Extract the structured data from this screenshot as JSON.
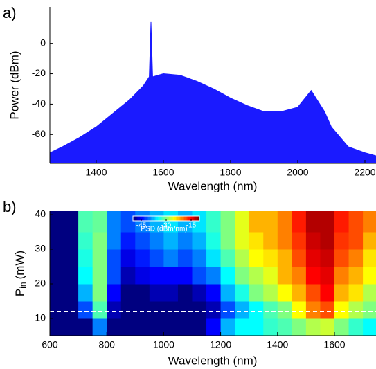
{
  "chart_data": [
    {
      "type": "area",
      "panel_label": "a)",
      "xlabel": "Wavelength (nm)",
      "ylabel": "Power (dBm)",
      "color": "#1a1aff",
      "x": [
        1262,
        1300,
        1350,
        1400,
        1450,
        1500,
        1540,
        1558,
        1563,
        1568,
        1600,
        1650,
        1700,
        1750,
        1800,
        1850,
        1900,
        1950,
        2000,
        2040,
        2080,
        2100,
        2150,
        2200,
        2233
      ],
      "values": [
        -72,
        -68,
        -62,
        -55,
        -46,
        -37,
        -28,
        -22,
        14,
        -22,
        -20,
        -21,
        -25,
        -30,
        -36,
        -41,
        -45,
        -45,
        -42,
        -31,
        -45,
        -55,
        -68,
        -72,
        -74
      ],
      "xlim": [
        1262,
        2233
      ],
      "ylim": [
        -79,
        24
      ],
      "xticks": [
        1400,
        1600,
        1800,
        2000,
        2200
      ],
      "yticks": [
        0,
        -20,
        -40,
        -60
      ]
    },
    {
      "type": "heatmap",
      "panel_label": "b)",
      "xlabel": "Wavelength (nm)",
      "ylabel_main": "P",
      "ylabel_sub": "in",
      "ylabel_unit": "(mW)",
      "xbins": [
        600,
        650,
        700,
        750,
        800,
        850,
        900,
        950,
        1000,
        1050,
        1100,
        1150,
        1200,
        1250,
        1300,
        1350,
        1400,
        1450,
        1500,
        1550,
        1600,
        1650,
        1700,
        1750
      ],
      "ybins": [
        5,
        10,
        15,
        20,
        25,
        30,
        35,
        41
      ],
      "z": [
        [
          -50,
          -50,
          -50,
          -40,
          -50,
          -50,
          -50,
          -50,
          -50,
          -50,
          -50,
          -45,
          -38,
          -35,
          -35,
          -33,
          -32,
          -30,
          -28,
          -27,
          -30,
          -33,
          -35
        ],
        [
          -50,
          -50,
          -42,
          -32,
          -48,
          -50,
          -50,
          -50,
          -50,
          -50,
          -50,
          -48,
          -42,
          -38,
          -35,
          -32,
          -30,
          -25,
          -20,
          -18,
          -25,
          -28,
          -30
        ],
        [
          -50,
          -50,
          -38,
          -30,
          -45,
          -50,
          -50,
          -48,
          -48,
          -50,
          -48,
          -45,
          -38,
          -34,
          -30,
          -28,
          -25,
          -22,
          -18,
          -15,
          -22,
          -24,
          -28
        ],
        [
          -50,
          -50,
          -35,
          -30,
          -42,
          -48,
          -46,
          -45,
          -45,
          -45,
          -42,
          -40,
          -35,
          -30,
          -28,
          -26,
          -22,
          -20,
          -15,
          -14,
          -20,
          -22,
          -25
        ],
        [
          -50,
          -50,
          -34,
          -30,
          -42,
          -46,
          -44,
          -42,
          -40,
          -42,
          -40,
          -36,
          -32,
          -28,
          -25,
          -24,
          -22,
          -18,
          -14,
          -13,
          -18,
          -20,
          -24
        ],
        [
          -50,
          -50,
          -33,
          -30,
          -40,
          -44,
          -42,
          -40,
          -38,
          -40,
          -38,
          -34,
          -30,
          -26,
          -24,
          -22,
          -20,
          -17,
          -13,
          -12,
          -17,
          -18,
          -22
        ],
        [
          -50,
          -50,
          -32,
          -31,
          -40,
          -42,
          -40,
          -38,
          -36,
          -38,
          -36,
          -33,
          -30,
          -26,
          -22,
          -22,
          -20,
          -16,
          -12,
          -12,
          -16,
          -18,
          -20
        ]
      ],
      "hline": 12,
      "colorbar_label": "PSD (dBm/nm)",
      "clim": [
        -50,
        -10
      ],
      "cticks": [
        -45,
        -30,
        -15
      ],
      "xlim": [
        600,
        1746
      ],
      "ylim": [
        5,
        41
      ],
      "xticks": [
        600,
        800,
        1000,
        1200,
        1400,
        1600
      ],
      "yticks": [
        10,
        20,
        30,
        40
      ]
    }
  ]
}
